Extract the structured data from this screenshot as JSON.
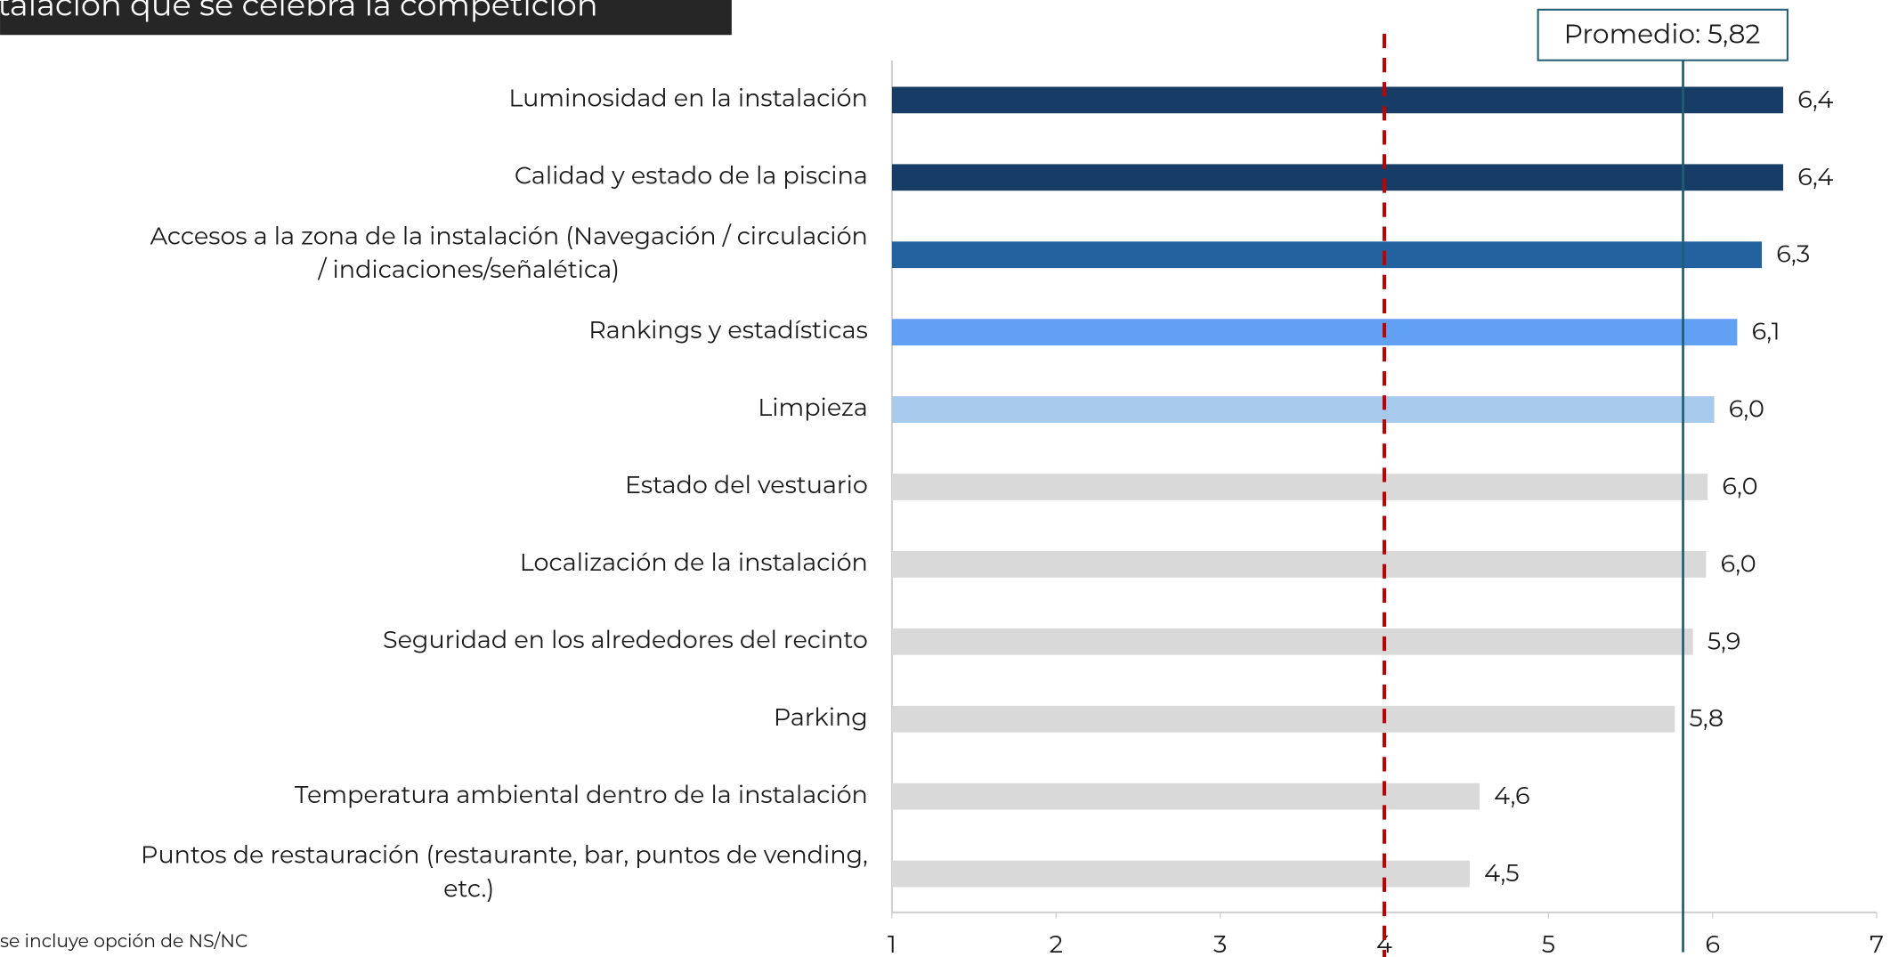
{
  "chart_data": {
    "type": "bar",
    "orientation": "horizontal",
    "title": "talación que se celebra la competición",
    "footnote": "se incluye opción de NS/NC",
    "categories": [
      "Luminosidad en la instalación",
      "Calidad y estado de la piscina",
      "Accesos a la zona de la instalación (Navegación / circulación / indicaciones/señalética)",
      "Rankings y estadísticas",
      "Limpieza",
      "Estado del vestuario",
      "Localización de la instalación",
      "Seguridad en los alrededores del recinto",
      "Parking",
      "Temperatura ambiental dentro de la instalación",
      "Puntos de restauración (restaurante, bar, puntos de vending, etc.)"
    ],
    "values": [
      6.43,
      6.43,
      6.3,
      6.15,
      6.01,
      5.97,
      5.96,
      5.88,
      5.77,
      4.58,
      4.52
    ],
    "value_labels": [
      "6,4",
      "6,4",
      "6,3",
      "6,1",
      "6,0",
      "6,0",
      "6,0",
      "5,9",
      "5,8",
      "4,6",
      "4,5"
    ],
    "colors": [
      "#173d66",
      "#173d66",
      "#23619f",
      "#62a0f3",
      "#a6c9ec",
      "#d9d9d9",
      "#d9d9d9",
      "#d9d9d9",
      "#d9d9d9",
      "#d9d9d9",
      "#d9d9d9"
    ],
    "xlim": [
      1,
      7
    ],
    "xticks": [
      1,
      2,
      3,
      4,
      5,
      6,
      7
    ],
    "reference_line": 4,
    "reference_color": "#c00000",
    "average": 5.82,
    "average_label": "Promedio: 5,82",
    "average_color": "#1f5d73"
  }
}
